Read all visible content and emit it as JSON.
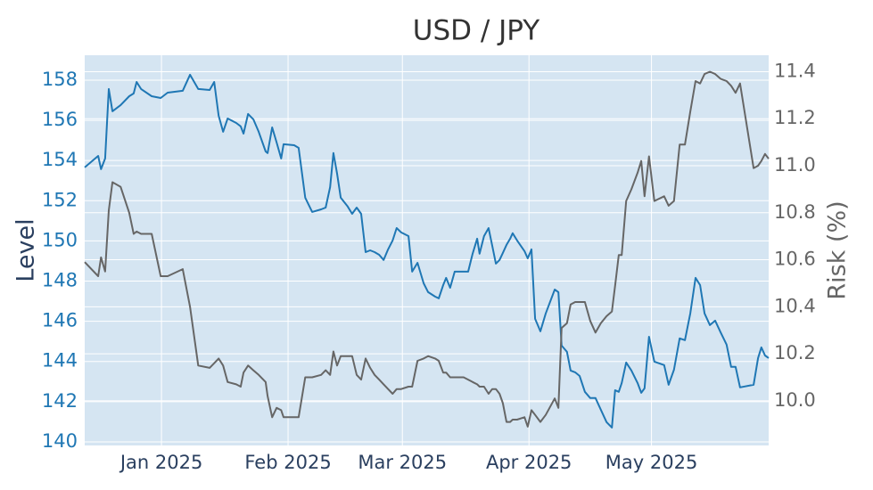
{
  "chart_data": {
    "type": "line",
    "title": "USD / JPY",
    "ylabel": "Level",
    "y2label": "Risk (%)",
    "x": [
      -18.8,
      -15.5,
      -14.8,
      -13.8,
      -12.9,
      -12.0,
      -10.0,
      -7.9,
      -6.8,
      -6.1,
      -5.0,
      -2.4,
      -0.2,
      1.5,
      5.2,
      7.0,
      9.0,
      11.8,
      12.9,
      14.0,
      15.1,
      16.2,
      18.3,
      19.4,
      20.1,
      21.2,
      22.5,
      23.8,
      25.5,
      26.0,
      27.1,
      28.2,
      29.3,
      29.9,
      32.5,
      33.6,
      35.2,
      36.9,
      39.1,
      40.2,
      41.3,
      42.1,
      43.0,
      43.9,
      45.6,
      46.7,
      47.8,
      48.9,
      50.0,
      51.1,
      52.2,
      53.3,
      54.4,
      55.5,
      56.6,
      57.6,
      58.7,
      60.5,
      61.4,
      62.7,
      64.2,
      65.3,
      67.0,
      67.9,
      69.0,
      69.7,
      70.7,
      71.8,
      74.0,
      75.1,
      76.2,
      77.3,
      77.9,
      79.0,
      80.1,
      81.0,
      81.9,
      82.8,
      83.6,
      84.5,
      85.4,
      86.0,
      87.1,
      88.9,
      89.7,
      90.6,
      91.5,
      92.8,
      94.1,
      96.3,
      97.2,
      98.0,
      99.3,
      100.2,
      101.3,
      102.4,
      103.7,
      105.0,
      106.3,
      107.6,
      109.0,
      110.3,
      111.1,
      112.0,
      112.7,
      113.8,
      115.1,
      116.6,
      117.5,
      118.3,
      119.4,
      120.7,
      123.1,
      124.2,
      125.5,
      126.9,
      128.2,
      129.5,
      130.8,
      131.9,
      133.0,
      134.3,
      135.6,
      136.9,
      138.4,
      139.5,
      140.6,
      141.7,
      145.0,
      146.1,
      146.9,
      147.8,
      148.7
    ],
    "series": [
      {
        "color": "#1f77b4",
        "values": [
          153.66,
          154.23,
          153.57,
          154.1,
          157.56,
          156.45,
          156.76,
          157.2,
          157.34,
          157.91,
          157.56,
          157.2,
          157.11,
          157.38,
          157.47,
          158.27,
          157.56,
          157.51,
          157.91,
          156.23,
          155.43,
          156.09,
          155.87,
          155.7,
          155.34,
          156.32,
          156.05,
          155.43,
          154.45,
          154.37,
          155.65,
          154.9,
          154.1,
          154.81,
          154.76,
          154.63,
          152.15,
          151.44,
          151.57,
          151.66,
          152.68,
          154.37,
          153.35,
          152.15,
          151.71,
          151.35,
          151.66,
          151.35,
          149.44,
          149.53,
          149.44,
          149.31,
          149.05,
          149.58,
          150.02,
          150.64,
          150.42,
          150.24,
          148.47,
          148.91,
          147.89,
          147.45,
          147.23,
          147.14,
          147.8,
          148.16,
          147.67,
          148.47,
          148.47,
          148.47,
          149.36,
          150.11,
          149.36,
          150.24,
          150.64,
          149.76,
          148.87,
          149.05,
          149.4,
          149.8,
          150.11,
          150.38,
          150.02,
          149.49,
          149.13,
          149.58,
          146.12,
          145.5,
          146.39,
          147.58,
          147.45,
          144.79,
          144.48,
          143.55,
          143.46,
          143.28,
          142.49,
          142.18,
          142.18,
          141.6,
          140.98,
          140.71,
          142.57,
          142.49,
          142.93,
          143.95,
          143.55,
          142.93,
          142.44,
          142.66,
          145.23,
          143.99,
          143.82,
          142.84,
          143.59,
          145.15,
          145.06,
          146.39,
          148.16,
          147.8,
          146.39,
          145.81,
          146.03,
          145.46,
          144.84,
          143.73,
          143.73,
          142.71,
          142.84,
          144.17,
          144.7,
          144.3,
          144.17
        ]
      },
      {
        "color": "#666666",
        "axis": "y2",
        "values": [
          10.59,
          10.53,
          10.61,
          10.55,
          10.81,
          10.93,
          10.91,
          10.8,
          10.71,
          10.72,
          10.71,
          10.71,
          10.53,
          10.53,
          10.56,
          10.4,
          10.15,
          10.14,
          10.16,
          10.18,
          10.15,
          10.08,
          10.07,
          10.06,
          10.12,
          10.15,
          10.13,
          10.11,
          10.08,
          10.02,
          9.93,
          9.97,
          9.96,
          9.93,
          9.93,
          9.93,
          10.1,
          10.1,
          10.11,
          10.13,
          10.11,
          10.21,
          10.15,
          10.19,
          10.19,
          10.19,
          10.11,
          10.09,
          10.18,
          10.14,
          10.11,
          10.09,
          10.07,
          10.05,
          10.03,
          10.05,
          10.05,
          10.06,
          10.06,
          10.17,
          10.18,
          10.19,
          10.18,
          10.17,
          10.12,
          10.12,
          10.1,
          10.1,
          10.1,
          10.09,
          10.08,
          10.07,
          10.06,
          10.06,
          10.03,
          10.05,
          10.05,
          10.03,
          9.99,
          9.91,
          9.91,
          9.92,
          9.92,
          9.93,
          9.89,
          9.96,
          9.94,
          9.91,
          9.94,
          10.01,
          9.97,
          10.31,
          10.33,
          10.41,
          10.42,
          10.42,
          10.42,
          10.34,
          10.29,
          10.33,
          10.36,
          10.38,
          10.49,
          10.62,
          10.62,
          10.85,
          10.9,
          10.97,
          11.02,
          10.87,
          11.04,
          10.85,
          10.87,
          10.83,
          10.85,
          11.09,
          11.09,
          11.23,
          11.36,
          11.35,
          11.39,
          11.4,
          11.39,
          11.37,
          11.36,
          11.34,
          11.31,
          11.35,
          10.99,
          11.0,
          11.02,
          11.05,
          11.03
        ]
      }
    ],
    "xlim": [
      -18.8,
      148.7
    ],
    "xticks": [
      {
        "value": 0,
        "label": "Jan 2025"
      },
      {
        "value": 31,
        "label": "Feb 2025"
      },
      {
        "value": 59,
        "label": "Mar 2025"
      },
      {
        "value": 90,
        "label": "Apr 2025"
      },
      {
        "value": 120,
        "label": "May 2025"
      }
    ],
    "ylim": [
      139.82,
      159.24
    ],
    "yticks": [
      140,
      142,
      144,
      146,
      148,
      150,
      152,
      154,
      156,
      158
    ],
    "y2lim": [
      9.81,
      11.47
    ],
    "y2ticks": [
      {
        "value": 10,
        "label": "10.0"
      },
      10.2,
      10.4,
      10.6,
      10.8,
      {
        "value": 11,
        "label": "11.0"
      },
      11.2,
      11.4
    ],
    "grid": true,
    "ytick_color": "#1f77b4",
    "y2tick_color": "#666666"
  }
}
